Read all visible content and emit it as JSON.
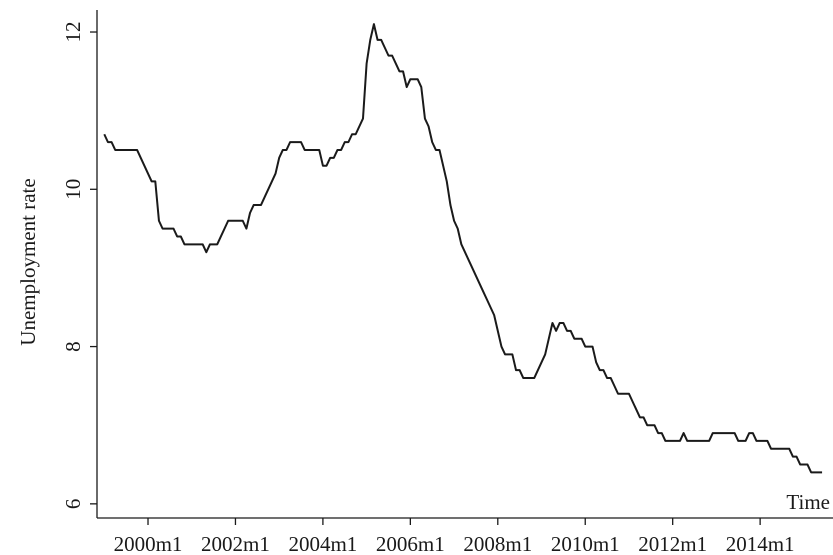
{
  "chart_data": {
    "type": "line",
    "y_label": "Unemployment rate",
    "x_label": "Time",
    "x": [
      "1999m1",
      "1999m2",
      "1999m3",
      "1999m4",
      "1999m5",
      "1999m6",
      "1999m7",
      "1999m8",
      "1999m9",
      "1999m10",
      "1999m11",
      "1999m12",
      "2000m1",
      "2000m2",
      "2000m3",
      "2000m4",
      "2000m5",
      "2000m6",
      "2000m7",
      "2000m8",
      "2000m9",
      "2000m10",
      "2000m11",
      "2000m12",
      "2001m1",
      "2001m2",
      "2001m3",
      "2001m4",
      "2001m5",
      "2001m6",
      "2001m7",
      "2001m8",
      "2001m9",
      "2001m10",
      "2001m11",
      "2001m12",
      "2002m1",
      "2002m2",
      "2002m3",
      "2002m4",
      "2002m5",
      "2002m6",
      "2002m7",
      "2002m8",
      "2002m9",
      "2002m10",
      "2002m11",
      "2002m12",
      "2003m1",
      "2003m2",
      "2003m3",
      "2003m4",
      "2003m5",
      "2003m6",
      "2003m7",
      "2003m8",
      "2003m9",
      "2003m10",
      "2003m11",
      "2003m12",
      "2004m1",
      "2004m2",
      "2004m3",
      "2004m4",
      "2004m5",
      "2004m6",
      "2004m7",
      "2004m8",
      "2004m9",
      "2004m10",
      "2004m11",
      "2004m12",
      "2005m1",
      "2005m2",
      "2005m3",
      "2005m4",
      "2005m5",
      "2005m6",
      "2005m7",
      "2005m8",
      "2005m9",
      "2005m10",
      "2005m11",
      "2005m12",
      "2006m1",
      "2006m2",
      "2006m3",
      "2006m4",
      "2006m5",
      "2006m6",
      "2006m7",
      "2006m8",
      "2006m9",
      "2006m10",
      "2006m11",
      "2006m12",
      "2007m1",
      "2007m2",
      "2007m3",
      "2007m4",
      "2007m5",
      "2007m6",
      "2007m7",
      "2007m8",
      "2007m9",
      "2007m10",
      "2007m11",
      "2007m12",
      "2008m1",
      "2008m2",
      "2008m3",
      "2008m4",
      "2008m5",
      "2008m6",
      "2008m7",
      "2008m8",
      "2008m9",
      "2008m10",
      "2008m11",
      "2008m12",
      "2009m1",
      "2009m2",
      "2009m3",
      "2009m4",
      "2009m5",
      "2009m6",
      "2009m7",
      "2009m8",
      "2009m9",
      "2009m10",
      "2009m11",
      "2009m12",
      "2010m1",
      "2010m2",
      "2010m3",
      "2010m4",
      "2010m5",
      "2010m6",
      "2010m7",
      "2010m8",
      "2010m9",
      "2010m10",
      "2010m11",
      "2010m12",
      "2011m1",
      "2011m2",
      "2011m3",
      "2011m4",
      "2011m5",
      "2011m6",
      "2011m7",
      "2011m8",
      "2011m9",
      "2011m10",
      "2011m11",
      "2011m12",
      "2012m1",
      "2012m2",
      "2012m3",
      "2012m4",
      "2012m5",
      "2012m6",
      "2012m7",
      "2012m8",
      "2012m9",
      "2012m10",
      "2012m11",
      "2012m12",
      "2013m1",
      "2013m2",
      "2013m3",
      "2013m4",
      "2013m5",
      "2013m6",
      "2013m7",
      "2013m8",
      "2013m9",
      "2013m10",
      "2013m11",
      "2013m12",
      "2014m1",
      "2014m2",
      "2014m3",
      "2014m4",
      "2014m5",
      "2014m6",
      "2014m7",
      "2014m8",
      "2014m9",
      "2014m10",
      "2014m11",
      "2014m12",
      "2015m1",
      "2015m2",
      "2015m3",
      "2015m4",
      "2015m5",
      "2015m6"
    ],
    "values": [
      10.7,
      10.6,
      10.6,
      10.5,
      10.5,
      10.5,
      10.5,
      10.5,
      10.5,
      10.5,
      10.4,
      10.3,
      10.2,
      10.1,
      10.1,
      9.6,
      9.5,
      9.5,
      9.5,
      9.5,
      9.4,
      9.4,
      9.3,
      9.3,
      9.3,
      9.3,
      9.3,
      9.3,
      9.2,
      9.3,
      9.3,
      9.3,
      9.4,
      9.5,
      9.6,
      9.6,
      9.6,
      9.6,
      9.6,
      9.5,
      9.7,
      9.8,
      9.8,
      9.8,
      9.9,
      10.0,
      10.1,
      10.2,
      10.4,
      10.5,
      10.5,
      10.6,
      10.6,
      10.6,
      10.6,
      10.5,
      10.5,
      10.5,
      10.5,
      10.5,
      10.3,
      10.3,
      10.4,
      10.4,
      10.5,
      10.5,
      10.6,
      10.6,
      10.7,
      10.7,
      10.8,
      10.9,
      11.6,
      11.9,
      12.1,
      11.9,
      11.9,
      11.8,
      11.7,
      11.7,
      11.6,
      11.5,
      11.5,
      11.3,
      11.4,
      11.4,
      11.4,
      11.3,
      10.9,
      10.8,
      10.6,
      10.5,
      10.5,
      10.3,
      10.1,
      9.8,
      9.6,
      9.5,
      9.3,
      9.2,
      9.1,
      9.0,
      8.9,
      8.8,
      8.7,
      8.6,
      8.5,
      8.4,
      8.2,
      8.0,
      7.9,
      7.9,
      7.9,
      7.7,
      7.7,
      7.6,
      7.6,
      7.6,
      7.6,
      7.7,
      7.8,
      7.9,
      8.1,
      8.3,
      8.2,
      8.3,
      8.3,
      8.2,
      8.2,
      8.1,
      8.1,
      8.1,
      8.0,
      8.0,
      8.0,
      7.8,
      7.7,
      7.7,
      7.6,
      7.6,
      7.5,
      7.4,
      7.4,
      7.4,
      7.4,
      7.3,
      7.2,
      7.1,
      7.1,
      7.0,
      7.0,
      7.0,
      6.9,
      6.9,
      6.8,
      6.8,
      6.8,
      6.8,
      6.8,
      6.9,
      6.8,
      6.8,
      6.8,
      6.8,
      6.8,
      6.8,
      6.8,
      6.9,
      6.9,
      6.9,
      6.9,
      6.9,
      6.9,
      6.9,
      6.8,
      6.8,
      6.8,
      6.9,
      6.9,
      6.8,
      6.8,
      6.8,
      6.8,
      6.7,
      6.7,
      6.7,
      6.7,
      6.7,
      6.7,
      6.6,
      6.6,
      6.5,
      6.5,
      6.5,
      6.4,
      6.4,
      6.4,
      6.4
    ],
    "color": "#1a1a1a",
    "xlim": [
      "1998m11",
      "2015m9"
    ],
    "xticks": [
      "2000m1",
      "2002m1",
      "2004m1",
      "2006m1",
      "2008m1",
      "2010m1",
      "2012m1",
      "2014m1"
    ],
    "ylim": [
      5.82,
      12.28
    ],
    "yticks": [
      6,
      8,
      10,
      12
    ]
  }
}
